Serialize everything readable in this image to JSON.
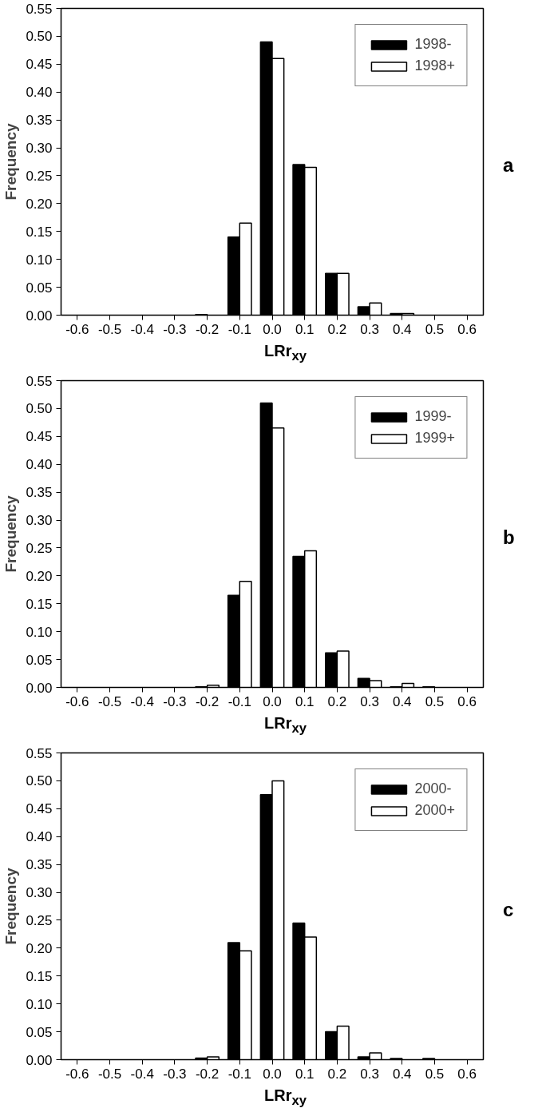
{
  "chart_data": [
    {
      "type": "bar",
      "xlabel": "LRr$_{xy}$",
      "ylabel": "Frequency",
      "annotations": [
        "a"
      ],
      "categories": [
        "-0.6",
        "-0.5",
        "-0.4",
        "-0.3",
        "-0.2",
        "-0.1",
        "0.0",
        "0.1",
        "0.2",
        "0.3",
        "0.4",
        "0.5",
        "0.6"
      ],
      "series": [
        {
          "name": "1998-",
          "color": "#000000",
          "values": [
            null,
            null,
            null,
            null,
            0.001,
            0.14,
            0.49,
            0.27,
            0.075,
            0.015,
            0.003,
            null,
            null
          ]
        },
        {
          "name": "1998+",
          "color": "#ffffff",
          "values": [
            null,
            null,
            null,
            null,
            null,
            0.165,
            0.46,
            0.265,
            0.075,
            0.022,
            0.003,
            null,
            null
          ]
        }
      ],
      "ylim": [
        0,
        0.55
      ],
      "yticks": [
        {
          "value": 0,
          "label": "0.00"
        },
        {
          "value": 0.05,
          "label": "0.05"
        },
        {
          "value": 0.1,
          "label": "0.10"
        },
        {
          "value": 0.15,
          "label": "0.15"
        },
        {
          "value": 0.2,
          "label": "0.20"
        },
        {
          "value": 0.25,
          "label": "0.25"
        },
        {
          "value": 0.3,
          "label": "0.30"
        },
        {
          "value": 0.35,
          "label": "0.35"
        },
        {
          "value": 0.4,
          "label": "0.40"
        },
        {
          "value": 0.45,
          "label": "0.45"
        },
        {
          "value": 0.5,
          "label": "0.50"
        },
        {
          "value": 0.55,
          "label": "0.55"
        }
      ],
      "legend": "top right"
    },
    {
      "type": "bar",
      "xlabel": "LRr$_{xy}$",
      "ylabel": "Frequency",
      "annotations": [
        "b"
      ],
      "categories": [
        "-0.6",
        "-0.5",
        "-0.4",
        "-0.3",
        "-0.2",
        "-0.1",
        "0.0",
        "0.1",
        "0.2",
        "0.3",
        "0.4",
        "0.5",
        "0.6"
      ],
      "series": [
        {
          "name": "1999-",
          "color": "#000000",
          "values": [
            null,
            null,
            null,
            null,
            0.001,
            0.165,
            0.51,
            0.235,
            0.062,
            0.016,
            0.001,
            0.001,
            null
          ]
        },
        {
          "name": "1999+",
          "color": "#ffffff",
          "values": [
            null,
            null,
            null,
            null,
            0.004,
            0.19,
            0.465,
            0.245,
            0.065,
            0.012,
            0.007,
            null,
            null
          ]
        }
      ],
      "ylim": [
        0,
        0.55
      ],
      "yticks": [
        {
          "value": 0,
          "label": "0.00"
        },
        {
          "value": 0.05,
          "label": "0.05"
        },
        {
          "value": 0.1,
          "label": "0.10"
        },
        {
          "value": 0.15,
          "label": "0.15"
        },
        {
          "value": 0.2,
          "label": "0.20"
        },
        {
          "value": 0.25,
          "label": "0.25"
        },
        {
          "value": 0.3,
          "label": "0.30"
        },
        {
          "value": 0.35,
          "label": "0.35"
        },
        {
          "value": 0.4,
          "label": "0.40"
        },
        {
          "value": 0.45,
          "label": "0.45"
        },
        {
          "value": 0.5,
          "label": "0.50"
        },
        {
          "value": 0.55,
          "label": "0.55"
        }
      ],
      "legend": "top right"
    },
    {
      "type": "bar",
      "xlabel": "LRr$_{xy}$",
      "ylabel": "Frequency",
      "annotations": [
        "c"
      ],
      "categories": [
        "-0.6",
        "-0.5",
        "-0.4",
        "-0.3",
        "-0.2",
        "-0.1",
        "0.0",
        "0.1",
        "0.2",
        "0.3",
        "0.4",
        "0.5",
        "0.6"
      ],
      "series": [
        {
          "name": "2000-",
          "color": "#000000",
          "values": [
            null,
            null,
            null,
            null,
            0.003,
            0.21,
            0.475,
            0.245,
            0.05,
            0.005,
            0.002,
            0.002,
            null
          ]
        },
        {
          "name": "2000+",
          "color": "#ffffff",
          "values": [
            null,
            null,
            null,
            null,
            0.005,
            0.195,
            0.5,
            0.22,
            0.06,
            0.012,
            null,
            null,
            null
          ]
        }
      ],
      "ylim": [
        0,
        0.55
      ],
      "yticks": [
        {
          "value": 0,
          "label": "0.00"
        },
        {
          "value": 0.05,
          "label": "0.05"
        },
        {
          "value": 0.1,
          "label": "0.10"
        },
        {
          "value": 0.15,
          "label": "0.15"
        },
        {
          "value": 0.2,
          "label": "0.20"
        },
        {
          "value": 0.25,
          "label": "0.25"
        },
        {
          "value": 0.3,
          "label": "0.30"
        },
        {
          "value": 0.35,
          "label": "0.35"
        },
        {
          "value": 0.4,
          "label": "0.40"
        },
        {
          "value": 0.45,
          "label": "0.45"
        },
        {
          "value": 0.5,
          "label": "0.50"
        },
        {
          "value": 0.55,
          "label": "0.55"
        }
      ],
      "legend": "top right"
    }
  ]
}
